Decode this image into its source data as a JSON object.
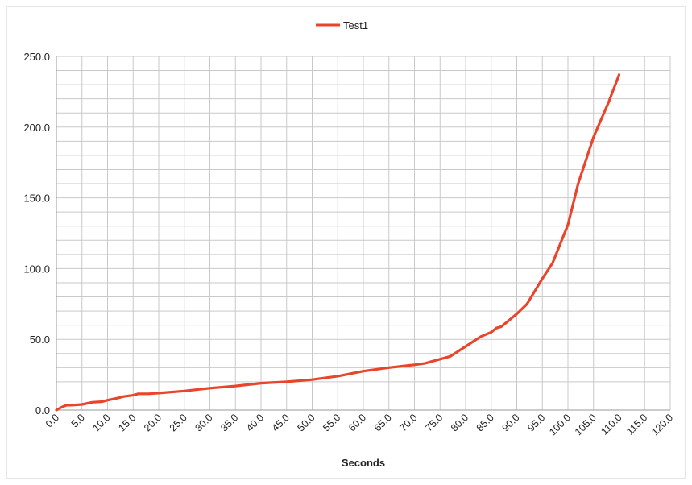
{
  "chart_data": {
    "type": "line",
    "title": "",
    "xlabel": "Seconds",
    "ylabel": "",
    "xlim": [
      0,
      120
    ],
    "ylim": [
      0,
      250
    ],
    "x_ticks": [
      "0.0",
      "5.0",
      "10.0",
      "15.0",
      "20.0",
      "25.0",
      "30.0",
      "35.0",
      "40.0",
      "45.0",
      "50.0",
      "55.0",
      "60.0",
      "65.0",
      "70.0",
      "75.0",
      "80.0",
      "85.0",
      "90.0",
      "95.0",
      "100.0",
      "105.0",
      "110.0",
      "115.0",
      "120.0"
    ],
    "y_ticks": [
      "0.0",
      "50.0",
      "100.0",
      "150.0",
      "200.0",
      "250.0"
    ],
    "grid": true,
    "legend": "top-center",
    "series": [
      {
        "name": "Test1",
        "color": "#e8452c",
        "x": [
          0,
          1,
          2,
          3,
          5,
          7,
          9,
          10,
          12,
          13,
          15,
          16,
          18,
          20,
          25,
          30,
          35,
          40,
          45,
          50,
          55,
          60,
          65,
          70,
          72,
          75,
          77,
          80,
          83,
          85,
          86,
          87,
          88,
          90,
          92,
          95,
          97,
          100,
          102,
          105,
          108,
          110
        ],
        "y": [
          0,
          2,
          3.5,
          3.5,
          4,
          5.5,
          6,
          7,
          8.5,
          9.5,
          10.5,
          11.5,
          11.5,
          12,
          13.5,
          15.5,
          17,
          19,
          20,
          21.5,
          24,
          27.5,
          30,
          32,
          33,
          36,
          38,
          45,
          52,
          55,
          58,
          59,
          62,
          68,
          75,
          93,
          104,
          131,
          160,
          193,
          218,
          237
        ]
      }
    ]
  }
}
